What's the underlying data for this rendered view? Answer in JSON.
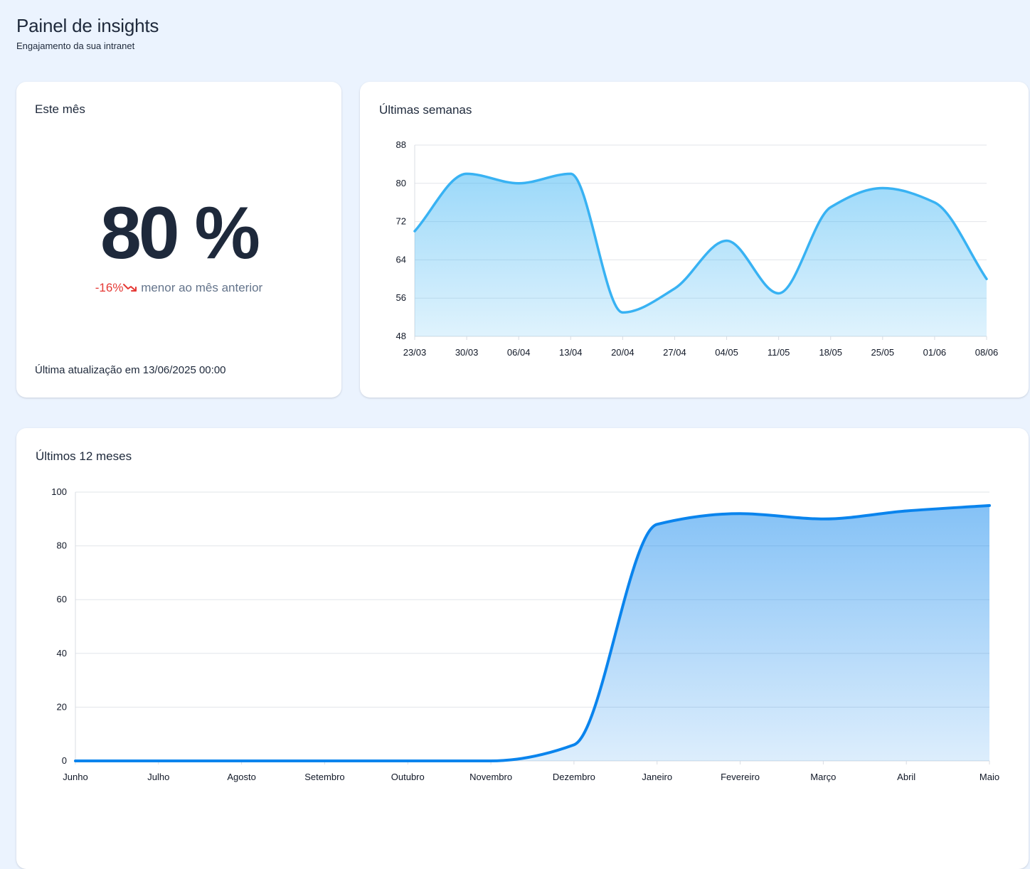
{
  "header": {
    "title": "Painel de insights",
    "subtitle": "Engajamento da sua intranet"
  },
  "month_card": {
    "title": "Este mês",
    "value": "80 %",
    "change": "-16%",
    "change_text": "menor ao mês anterior",
    "trend_icon": "trending-down-icon",
    "last_update": "Última atualização em 13/06/2025 00:00"
  },
  "colors": {
    "background": "#ebf3fe",
    "negative": "#e53935",
    "weeks_line": "#38b2f3",
    "year_line": "#0a84ed"
  },
  "chart_data": [
    {
      "type": "area",
      "title": "Últimas semanas",
      "categories": [
        "23/03",
        "30/03",
        "06/04",
        "13/04",
        "20/04",
        "27/04",
        "04/05",
        "11/05",
        "18/05",
        "25/05",
        "01/06",
        "08/06"
      ],
      "values": [
        70,
        82,
        80,
        82,
        53,
        58,
        68,
        57,
        75,
        79,
        76,
        60
      ],
      "ylim": [
        48,
        88
      ],
      "yticks": [
        48,
        56,
        64,
        72,
        80,
        88
      ],
      "grid": true,
      "legend": "none"
    },
    {
      "type": "area",
      "title": "Últimos 12 meses",
      "categories": [
        "Junho",
        "Julho",
        "Agosto",
        "Setembro",
        "Outubro",
        "Novembro",
        "Dezembro",
        "Janeiro",
        "Fevereiro",
        "Março",
        "Abril",
        "Maio"
      ],
      "values": [
        0,
        0,
        0,
        0,
        0,
        0,
        6,
        88,
        92,
        90,
        93,
        95
      ],
      "ylim": [
        0,
        100
      ],
      "yticks": [
        0,
        20,
        40,
        60,
        80,
        100
      ],
      "grid": true,
      "legend": "none"
    }
  ]
}
